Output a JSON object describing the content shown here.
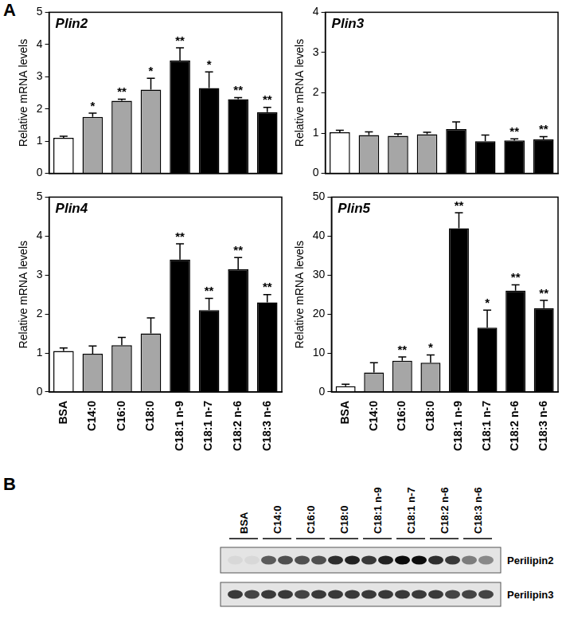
{
  "charts_panel": "A",
  "chart_data": [
    {
      "type": "bar",
      "title": "Plin2",
      "y_label": "Relative mRNA levels",
      "categories": [
        "BSA",
        "C14:0",
        "C16:0",
        "C18:0",
        "C18:1 n-9",
        "C18:1 n-7",
        "C18:2 n-6",
        "C18:3 n-6"
      ],
      "values": [
        1.1,
        1.75,
        2.25,
        2.6,
        3.5,
        2.65,
        2.3,
        1.9
      ],
      "errors": [
        0.05,
        0.12,
        0.05,
        0.35,
        0.4,
        0.5,
        0.05,
        0.15
      ],
      "significance": [
        null,
        "*",
        "**",
        "*",
        "**",
        "*",
        "**",
        "**"
      ],
      "colors": [
        "#ffffff",
        "#a6a6a6",
        "#a6a6a6",
        "#a6a6a6",
        "#000000",
        "#000000",
        "#000000",
        "#000000"
      ],
      "ylim": [
        0,
        5
      ],
      "yticks": [
        0,
        1,
        2,
        3,
        4,
        5
      ],
      "grid": false,
      "tick_labels": "y"
    },
    {
      "type": "bar",
      "title": "Plin3",
      "y_label": "Relative mRNA levels",
      "categories": [
        "BSA",
        "C14:0",
        "C16:0",
        "C18:0",
        "C18:1 n-9",
        "C18:1 n-7",
        "C18:2 n-6",
        "C18:3 n-6"
      ],
      "values": [
        1.02,
        0.95,
        0.93,
        0.97,
        1.1,
        0.8,
        0.82,
        0.85
      ],
      "errors": [
        0.05,
        0.08,
        0.05,
        0.05,
        0.18,
        0.15,
        0.04,
        0.06
      ],
      "significance": [
        null,
        null,
        null,
        null,
        null,
        null,
        "**",
        "**"
      ],
      "colors": [
        "#ffffff",
        "#a6a6a6",
        "#a6a6a6",
        "#a6a6a6",
        "#000000",
        "#000000",
        "#000000",
        "#000000"
      ],
      "ylim": [
        0,
        4
      ],
      "yticks": [
        0,
        1,
        2,
        3,
        4
      ],
      "grid": false,
      "tick_labels": "y"
    },
    {
      "type": "bar",
      "title": "Plin4",
      "y_label": "Relative mRNA levels",
      "categories": [
        "BSA",
        "C14:0",
        "C16:0",
        "C18:0",
        "C18:1 n-9",
        "C18:1 n-7",
        "C18:2 n-6",
        "C18:3 n-6"
      ],
      "values": [
        1.05,
        0.98,
        1.2,
        1.5,
        3.4,
        2.1,
        3.15,
        2.3
      ],
      "errors": [
        0.08,
        0.2,
        0.2,
        0.4,
        0.4,
        0.3,
        0.3,
        0.2
      ],
      "significance": [
        null,
        null,
        null,
        null,
        "**",
        "**",
        "**",
        "**"
      ],
      "colors": [
        "#ffffff",
        "#a6a6a6",
        "#a6a6a6",
        "#a6a6a6",
        "#000000",
        "#000000",
        "#000000",
        "#000000"
      ],
      "ylim": [
        0,
        5
      ],
      "yticks": [
        0,
        1,
        2,
        3,
        4,
        5
      ],
      "grid": false
    },
    {
      "type": "bar",
      "title": "Plin5",
      "y_label": "Relative mRNA levels",
      "categories": [
        "BSA",
        "C14:0",
        "C16:0",
        "C18:0",
        "C18:1 n-9",
        "C18:1 n-7",
        "C18:2 n-6",
        "C18:3 n-6"
      ],
      "values": [
        1.5,
        5,
        8,
        7.5,
        42,
        16.5,
        26,
        21.5
      ],
      "errors": [
        0.5,
        2.5,
        1,
        2,
        4,
        4.5,
        1.5,
        2
      ],
      "significance": [
        null,
        null,
        "**",
        "*",
        "**",
        "*",
        "**",
        "**"
      ],
      "colors": [
        "#ffffff",
        "#a6a6a6",
        "#a6a6a6",
        "#a6a6a6",
        "#000000",
        "#000000",
        "#000000",
        "#000000"
      ],
      "ylim": [
        0,
        50
      ],
      "yticks": [
        0,
        10,
        20,
        30,
        40,
        50
      ],
      "grid": false
    }
  ],
  "blot": {
    "panel": "B",
    "lanes": [
      "BSA",
      "C14:0",
      "C16:0",
      "C18:0",
      "C18:1 n-9",
      "C18:1 n-7",
      "C18:2 n-6",
      "C18:3 n-6"
    ],
    "rows": [
      {
        "label": "Perilipin2",
        "band_intensity": [
          [
            0.05,
            0.05
          ],
          [
            0.6,
            0.65
          ],
          [
            0.65,
            0.65
          ],
          [
            0.8,
            0.85
          ],
          [
            0.75,
            0.85
          ],
          [
            0.95,
            0.95
          ],
          [
            0.8,
            0.75
          ],
          [
            0.45,
            0.4
          ]
        ]
      },
      {
        "label": "Perilipin3",
        "band_intensity": [
          [
            0.75,
            0.7
          ],
          [
            0.75,
            0.75
          ],
          [
            0.7,
            0.75
          ],
          [
            0.75,
            0.75
          ],
          [
            0.75,
            0.75
          ],
          [
            0.75,
            0.75
          ],
          [
            0.75,
            0.7
          ],
          [
            0.7,
            0.7
          ]
        ]
      }
    ]
  }
}
